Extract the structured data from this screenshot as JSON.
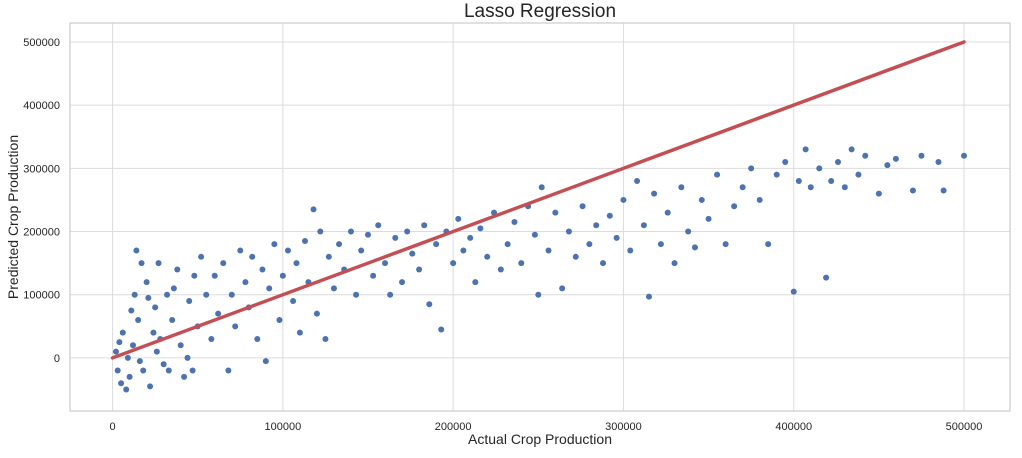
{
  "chart_data": {
    "type": "scatter",
    "title": "Lasso Regression",
    "xlabel": "Actual Crop Production",
    "ylabel": "Predicted Crop Production",
    "xlim": [
      -25000,
      527000
    ],
    "ylim": [
      -84000,
      530000
    ],
    "xticks": [
      0,
      100000,
      200000,
      300000,
      400000,
      500000
    ],
    "yticks": [
      0,
      100000,
      200000,
      300000,
      400000,
      500000
    ],
    "grid": true,
    "colors": {
      "points": "#4c72b0",
      "line": "#c44e52",
      "grid": "#dcdcdc",
      "frame": "#cccccc"
    },
    "reference_line": {
      "x": [
        0,
        500000
      ],
      "y": [
        0,
        500000
      ]
    },
    "points": [
      [
        2000,
        10000
      ],
      [
        3000,
        -20000
      ],
      [
        5000,
        -40000
      ],
      [
        8000,
        -50000
      ],
      [
        10000,
        -30000
      ],
      [
        12000,
        20000
      ],
      [
        15000,
        60000
      ],
      [
        14000,
        170000
      ],
      [
        17000,
        150000
      ],
      [
        20000,
        120000
      ],
      [
        22000,
        -45000
      ],
      [
        25000,
        80000
      ],
      [
        28000,
        30000
      ],
      [
        30000,
        -10000
      ],
      [
        6000,
        40000
      ],
      [
        9000,
        0
      ],
      [
        18000,
        -20000
      ],
      [
        24000,
        40000
      ],
      [
        32000,
        100000
      ],
      [
        35000,
        60000
      ],
      [
        38000,
        140000
      ],
      [
        40000,
        20000
      ],
      [
        42000,
        -30000
      ],
      [
        45000,
        90000
      ],
      [
        48000,
        130000
      ],
      [
        50000,
        50000
      ],
      [
        13000,
        100000
      ],
      [
        16000,
        -5000
      ],
      [
        26000,
        10000
      ],
      [
        33000,
        -20000
      ],
      [
        4000,
        25000
      ],
      [
        11000,
        75000
      ],
      [
        21000,
        95000
      ],
      [
        27000,
        150000
      ],
      [
        36000,
        110000
      ],
      [
        44000,
        0
      ],
      [
        47000,
        -20000
      ],
      [
        52000,
        160000
      ],
      [
        55000,
        100000
      ],
      [
        58000,
        30000
      ],
      [
        60000,
        130000
      ],
      [
        62000,
        70000
      ],
      [
        65000,
        150000
      ],
      [
        68000,
        -20000
      ],
      [
        70000,
        100000
      ],
      [
        72000,
        50000
      ],
      [
        75000,
        170000
      ],
      [
        78000,
        120000
      ],
      [
        80000,
        80000
      ],
      [
        82000,
        160000
      ],
      [
        85000,
        30000
      ],
      [
        88000,
        140000
      ],
      [
        90000,
        -5000
      ],
      [
        92000,
        110000
      ],
      [
        95000,
        180000
      ],
      [
        98000,
        60000
      ],
      [
        100000,
        130000
      ],
      [
        103000,
        170000
      ],
      [
        106000,
        90000
      ],
      [
        108000,
        150000
      ],
      [
        110000,
        40000
      ],
      [
        113000,
        185000
      ],
      [
        115000,
        120000
      ],
      [
        118000,
        235000
      ],
      [
        120000,
        70000
      ],
      [
        122000,
        200000
      ],
      [
        125000,
        30000
      ],
      [
        127000,
        160000
      ],
      [
        130000,
        110000
      ],
      [
        133000,
        180000
      ],
      [
        136000,
        140000
      ],
      [
        140000,
        200000
      ],
      [
        143000,
        100000
      ],
      [
        146000,
        170000
      ],
      [
        150000,
        195000
      ],
      [
        153000,
        130000
      ],
      [
        156000,
        210000
      ],
      [
        160000,
        150000
      ],
      [
        163000,
        100000
      ],
      [
        166000,
        190000
      ],
      [
        170000,
        120000
      ],
      [
        173000,
        200000
      ],
      [
        176000,
        165000
      ],
      [
        180000,
        140000
      ],
      [
        183000,
        210000
      ],
      [
        186000,
        85000
      ],
      [
        190000,
        180000
      ],
      [
        193000,
        45000
      ],
      [
        196000,
        200000
      ],
      [
        200000,
        150000
      ],
      [
        203000,
        220000
      ],
      [
        206000,
        170000
      ],
      [
        210000,
        190000
      ],
      [
        213000,
        120000
      ],
      [
        216000,
        205000
      ],
      [
        220000,
        160000
      ],
      [
        224000,
        230000
      ],
      [
        228000,
        140000
      ],
      [
        232000,
        180000
      ],
      [
        236000,
        215000
      ],
      [
        240000,
        150000
      ],
      [
        244000,
        240000
      ],
      [
        248000,
        195000
      ],
      [
        250000,
        100000
      ],
      [
        252000,
        270000
      ],
      [
        256000,
        170000
      ],
      [
        260000,
        230000
      ],
      [
        264000,
        110000
      ],
      [
        268000,
        200000
      ],
      [
        272000,
        160000
      ],
      [
        276000,
        240000
      ],
      [
        280000,
        180000
      ],
      [
        284000,
        210000
      ],
      [
        288000,
        150000
      ],
      [
        292000,
        225000
      ],
      [
        296000,
        190000
      ],
      [
        300000,
        250000
      ],
      [
        304000,
        170000
      ],
      [
        308000,
        280000
      ],
      [
        312000,
        210000
      ],
      [
        315000,
        97000
      ],
      [
        318000,
        260000
      ],
      [
        322000,
        180000
      ],
      [
        326000,
        230000
      ],
      [
        330000,
        150000
      ],
      [
        334000,
        270000
      ],
      [
        338000,
        200000
      ],
      [
        342000,
        175000
      ],
      [
        346000,
        250000
      ],
      [
        350000,
        220000
      ],
      [
        355000,
        290000
      ],
      [
        360000,
        180000
      ],
      [
        365000,
        240000
      ],
      [
        370000,
        270000
      ],
      [
        375000,
        300000
      ],
      [
        380000,
        250000
      ],
      [
        385000,
        180000
      ],
      [
        390000,
        290000
      ],
      [
        395000,
        310000
      ],
      [
        400000,
        105000
      ],
      [
        403000,
        280000
      ],
      [
        407000,
        330000
      ],
      [
        410000,
        270000
      ],
      [
        415000,
        300000
      ],
      [
        419000,
        127000
      ],
      [
        422000,
        280000
      ],
      [
        426000,
        310000
      ],
      [
        430000,
        270000
      ],
      [
        434000,
        330000
      ],
      [
        438000,
        290000
      ],
      [
        442000,
        320000
      ],
      [
        450000,
        260000
      ],
      [
        455000,
        305000
      ],
      [
        460000,
        315000
      ],
      [
        470000,
        265000
      ],
      [
        475000,
        320000
      ],
      [
        485000,
        310000
      ],
      [
        488000,
        265000
      ],
      [
        500000,
        320000
      ]
    ]
  }
}
